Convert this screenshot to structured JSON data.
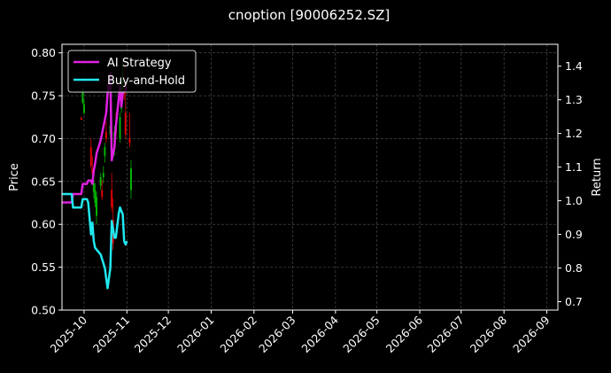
{
  "chart_data": {
    "type": "line",
    "title": "cnoption [90006252.SZ]",
    "xlabel": "",
    "ylabel": "Price",
    "y2label": "Return",
    "x_ticks": [
      "2025-10",
      "2025-11",
      "2025-12",
      "2026-01",
      "2026-02",
      "2026-03",
      "2026-04",
      "2026-05",
      "2026-06",
      "2026-07",
      "2026-08",
      "2026-09"
    ],
    "xlim": [
      "2025-09-15",
      "2026-09-09"
    ],
    "ylim": [
      0.5,
      0.81
    ],
    "y_ticks": [
      "0.50",
      "0.55",
      "0.60",
      "0.65",
      "0.70",
      "0.75",
      "0.80"
    ],
    "y2lim": [
      0.675,
      1.465
    ],
    "y2_ticks": [
      "0.7",
      "0.8",
      "0.9",
      "1.0",
      "1.1",
      "1.2",
      "1.3",
      "1.4"
    ],
    "grid": true,
    "legend_position": "top-left",
    "colors": {
      "background": "#000000",
      "up": "#00b300",
      "down": "#e00000",
      "strategy": "#e020e0",
      "buyhold": "#20e8f0",
      "grid": "#555555"
    },
    "candles": [
      {
        "date": "2025-09-29",
        "open": 0.724,
        "high": 0.726,
        "low": 0.722,
        "close": 0.722
      },
      {
        "date": "2025-09-30",
        "open": 0.742,
        "high": 0.76,
        "low": 0.74,
        "close": 0.757
      },
      {
        "date": "2025-10-01",
        "open": 0.73,
        "high": 0.745,
        "low": 0.728,
        "close": 0.74
      },
      {
        "date": "2025-10-06",
        "open": 0.69,
        "high": 0.7,
        "low": 0.665,
        "close": 0.668
      },
      {
        "date": "2025-10-07",
        "open": 0.665,
        "high": 0.68,
        "low": 0.655,
        "close": 0.66
      },
      {
        "date": "2025-10-08",
        "open": 0.638,
        "high": 0.652,
        "low": 0.63,
        "close": 0.648
      },
      {
        "date": "2025-10-09",
        "open": 0.625,
        "high": 0.648,
        "low": 0.62,
        "close": 0.64
      },
      {
        "date": "2025-10-10",
        "open": 0.61,
        "high": 0.638,
        "low": 0.6,
        "close": 0.632
      },
      {
        "date": "2025-10-13",
        "open": 0.645,
        "high": 0.66,
        "low": 0.64,
        "close": 0.655
      },
      {
        "date": "2025-10-14",
        "open": 0.64,
        "high": 0.652,
        "low": 0.628,
        "close": 0.632
      },
      {
        "date": "2025-10-15",
        "open": 0.655,
        "high": 0.668,
        "low": 0.648,
        "close": 0.66
      },
      {
        "date": "2025-10-16",
        "open": 0.68,
        "high": 0.695,
        "low": 0.672,
        "close": 0.69
      },
      {
        "date": "2025-10-17",
        "open": 0.708,
        "high": 0.72,
        "low": 0.695,
        "close": 0.7
      },
      {
        "date": "2025-10-20",
        "open": 0.705,
        "high": 0.722,
        "low": 0.7,
        "close": 0.715
      },
      {
        "date": "2025-10-21",
        "open": 0.64,
        "high": 0.66,
        "low": 0.615,
        "close": 0.62
      },
      {
        "date": "2025-10-22",
        "open": 0.605,
        "high": 0.63,
        "low": 0.57,
        "close": 0.578
      },
      {
        "date": "2025-10-23",
        "open": 0.69,
        "high": 0.715,
        "low": 0.68,
        "close": 0.708
      },
      {
        "date": "2025-10-24",
        "open": 0.715,
        "high": 0.73,
        "low": 0.7,
        "close": 0.705
      },
      {
        "date": "2025-10-27",
        "open": 0.7,
        "high": 0.73,
        "low": 0.695,
        "close": 0.725
      },
      {
        "date": "2025-10-28",
        "open": 0.735,
        "high": 0.765,
        "low": 0.73,
        "close": 0.76
      },
      {
        "date": "2025-10-29",
        "open": 0.765,
        "high": 0.79,
        "low": 0.755,
        "close": 0.77
      },
      {
        "date": "2025-10-30",
        "open": 0.755,
        "high": 0.79,
        "low": 0.745,
        "close": 0.752
      },
      {
        "date": "2025-10-31",
        "open": 0.73,
        "high": 0.76,
        "low": 0.7,
        "close": 0.705
      },
      {
        "date": "2025-11-03",
        "open": 0.7,
        "high": 0.73,
        "low": 0.69,
        "close": 0.695
      },
      {
        "date": "2025-11-04",
        "open": 0.64,
        "high": 0.675,
        "low": 0.63,
        "close": 0.665
      }
    ],
    "series": [
      {
        "name": "AI Strategy",
        "color": "#e020e0",
        "axis": "right",
        "points": [
          [
            "2025-09-15",
            0.995
          ],
          [
            "2025-09-22",
            0.995
          ],
          [
            "2025-09-23",
            1.02
          ],
          [
            "2025-09-26",
            1.02
          ],
          [
            "2025-09-29",
            1.02
          ],
          [
            "2025-09-30",
            1.05
          ],
          [
            "2025-10-03",
            1.05
          ],
          [
            "2025-10-04",
            1.06
          ],
          [
            "2025-10-06",
            1.06
          ],
          [
            "2025-10-07",
            1.05
          ],
          [
            "2025-10-08",
            1.09
          ],
          [
            "2025-10-09",
            1.11
          ],
          [
            "2025-10-10",
            1.14
          ],
          [
            "2025-10-13",
            1.18
          ],
          [
            "2025-10-15",
            1.22
          ],
          [
            "2025-10-17",
            1.26
          ],
          [
            "2025-10-18",
            1.32
          ],
          [
            "2025-10-20",
            1.38
          ],
          [
            "2025-10-21",
            1.12
          ],
          [
            "2025-10-23",
            1.16
          ],
          [
            "2025-10-24",
            1.22
          ],
          [
            "2025-10-27",
            1.34
          ],
          [
            "2025-10-28",
            1.28
          ],
          [
            "2025-10-29",
            1.32
          ],
          [
            "2025-10-31",
            1.33
          ],
          [
            "2025-11-01",
            1.34
          ]
        ]
      },
      {
        "name": "Buy-and-Hold",
        "color": "#20e8f0",
        "axis": "right",
        "points": [
          [
            "2025-09-15",
            1.02
          ],
          [
            "2025-09-22",
            1.02
          ],
          [
            "2025-09-23",
            0.98
          ],
          [
            "2025-09-26",
            0.98
          ],
          [
            "2025-09-29",
            0.98
          ],
          [
            "2025-09-30",
            1.005
          ],
          [
            "2025-10-03",
            1.005
          ],
          [
            "2025-10-04",
            0.995
          ],
          [
            "2025-10-06",
            0.9
          ],
          [
            "2025-10-07",
            0.935
          ],
          [
            "2025-10-08",
            0.88
          ],
          [
            "2025-10-09",
            0.86
          ],
          [
            "2025-10-13",
            0.84
          ],
          [
            "2025-10-16",
            0.8
          ],
          [
            "2025-10-18",
            0.74
          ],
          [
            "2025-10-20",
            0.8
          ],
          [
            "2025-10-21",
            0.94
          ],
          [
            "2025-10-23",
            0.89
          ],
          [
            "2025-10-24",
            0.89
          ],
          [
            "2025-10-26",
            0.96
          ],
          [
            "2025-10-27",
            0.98
          ],
          [
            "2025-10-29",
            0.96
          ],
          [
            "2025-10-30",
            0.88
          ],
          [
            "2025-10-31",
            0.87
          ],
          [
            "2025-11-01",
            0.88
          ]
        ]
      }
    ]
  }
}
